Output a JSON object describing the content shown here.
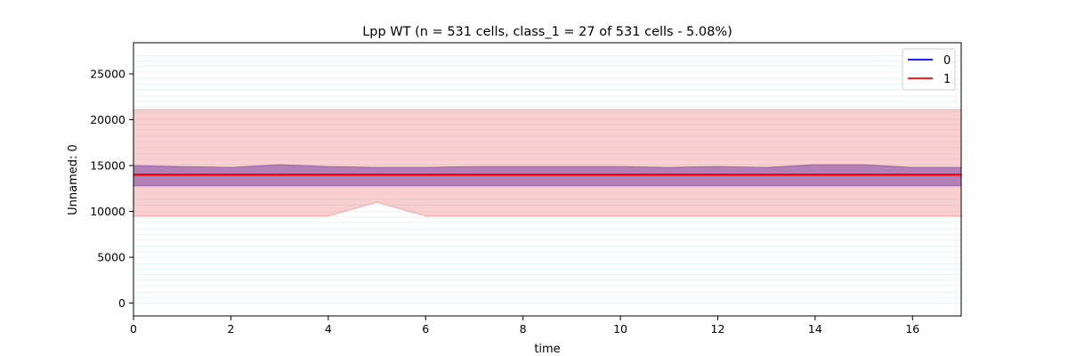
{
  "chart_data": {
    "type": "line",
    "title": "Lpp WT (n = 531 cells, class_1 = 27 of 531 cells - 5.08%)",
    "xlabel": "time",
    "ylabel": "Unnamed: 0",
    "xlim": [
      0,
      17
    ],
    "ylim": [
      -1400,
      28400
    ],
    "xticks": [
      0,
      2,
      4,
      6,
      8,
      10,
      12,
      14,
      16
    ],
    "yticks": [
      0,
      5000,
      10000,
      15000,
      20000,
      25000
    ],
    "grid": false,
    "legend": {
      "placement": "top-right",
      "entries": [
        "0",
        "1"
      ]
    },
    "x": [
      0,
      1,
      2,
      3,
      4,
      5,
      6,
      7,
      8,
      9,
      10,
      11,
      12,
      13,
      14,
      15,
      16,
      17
    ],
    "series": [
      {
        "name": "0",
        "color": "#0000ff",
        "values": [
          14000,
          14000,
          14000,
          14000,
          14000,
          14000,
          14000,
          14000,
          14000,
          14000,
          14000,
          14000,
          14000,
          14000,
          14000,
          14000,
          14000,
          14000
        ],
        "band_upper": [
          15000,
          14900,
          14800,
          15100,
          14900,
          14800,
          14800,
          14900,
          14900,
          14900,
          14900,
          14800,
          14900,
          14800,
          15100,
          15100,
          14800,
          14800
        ],
        "band_lower": [
          12800,
          12800,
          12800,
          12800,
          12800,
          12800,
          12800,
          12800,
          12800,
          12800,
          12800,
          12800,
          12800,
          12800,
          12800,
          12800,
          12800,
          12800
        ],
        "band_color": "#7b3fa0"
      },
      {
        "name": "1",
        "color": "#ff0000",
        "values": [
          14000,
          14000,
          14000,
          14000,
          14000,
          14000,
          14000,
          14000,
          14000,
          14000,
          14000,
          14000,
          14000,
          14000,
          14000,
          14000,
          14000,
          14000
        ],
        "band_upper": [
          21100,
          21100,
          21100,
          21100,
          21100,
          21100,
          21100,
          21100,
          21100,
          21100,
          21100,
          21100,
          21100,
          21100,
          21100,
          21100,
          21100,
          21100
        ],
        "band_lower": [
          9500,
          9500,
          9500,
          9500,
          9500,
          11000,
          9500,
          9500,
          9500,
          9500,
          9500,
          9500,
          9500,
          9500,
          9500,
          9500,
          9500,
          9500
        ],
        "band_color": "#f08080"
      }
    ],
    "background_traces": {
      "color": "#b0e0e6",
      "levels": [
        0,
        600,
        1200,
        1900,
        2500,
        3100,
        3700,
        4300,
        5000,
        5600,
        6200,
        6900,
        7500,
        8100,
        8800,
        9400,
        10000,
        10700,
        11300,
        11900,
        12600,
        13200,
        13800,
        14400,
        15100,
        15700,
        16300,
        17000,
        17600,
        18200,
        18900,
        19500,
        20100,
        20800,
        21400,
        22000,
        22600,
        23300,
        23900,
        24500,
        25200,
        25800,
        26400,
        27000
      ]
    }
  }
}
